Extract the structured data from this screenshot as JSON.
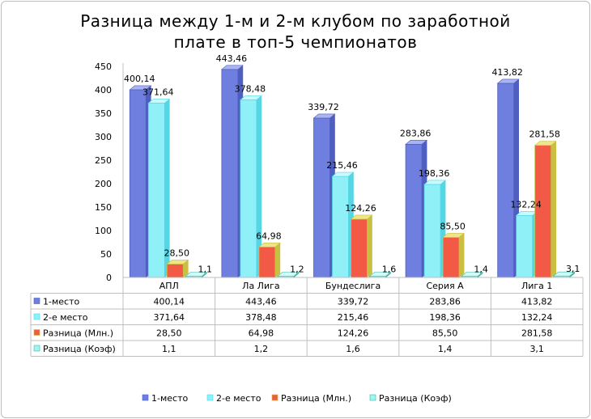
{
  "chart_data": {
    "type": "bar",
    "title_line1": "Разница между 1-м и 2-м клубом по заработной",
    "title_line2": "плате в топ-5 чемпионатов",
    "categories": [
      "АПЛ",
      "Ла Лига",
      "Бундеслига",
      "Серия А",
      "Лига 1"
    ],
    "series": [
      {
        "name": "1-место",
        "values": [
          400.14,
          443.46,
          339.72,
          283.86,
          413.82
        ],
        "labels": [
          "400,14",
          "443,46",
          "339,72",
          "283,86",
          "413,82"
        ],
        "color": "#6f7fe0",
        "color_light": "#aab4f0",
        "color_dark": "#4f5fc0"
      },
      {
        "name": "2-е место",
        "values": [
          371.64,
          378.48,
          215.46,
          198.36,
          132.24
        ],
        "labels": [
          "371,64",
          "378,48",
          "215,46",
          "198,36",
          "132,24"
        ],
        "color": "#8ff0f8",
        "color_light": "#c8fbff",
        "color_dark": "#55d6e4"
      },
      {
        "name": "Разница (Млн.)",
        "values": [
          28.5,
          64.98,
          124.26,
          85.5,
          281.58
        ],
        "labels": [
          "28,50",
          "64,98",
          "124,26",
          "85,50",
          "281,58"
        ],
        "color": "#f25a46",
        "color_light": "#f0e48a",
        "color_dark": "#c8c040"
      },
      {
        "name": "Разница (Коэф)",
        "values": [
          1.1,
          1.2,
          1.6,
          1.4,
          3.1
        ],
        "labels": [
          "1,1",
          "1,2",
          "1,6",
          "1,4",
          "3,1"
        ],
        "color": "#9ff5ef",
        "color_light": "#d0fbf7",
        "color_dark": "#3fb8a8"
      }
    ],
    "ylim": [
      0,
      450
    ],
    "yticks": [
      0,
      50,
      100,
      150,
      200,
      250,
      300,
      350,
      400,
      450
    ],
    "table_rows": [
      {
        "label": "1-место",
        "cells": [
          "400,14",
          "443,46",
          "339,72",
          "283,86",
          "413,82"
        ]
      },
      {
        "label": "2-е место",
        "cells": [
          "371,64",
          "378,48",
          "215,46",
          "198,36",
          "132,24"
        ]
      },
      {
        "label": "Разница (Млн.)",
        "cells": [
          "28,50",
          "64,98",
          "124,26",
          "85,50",
          "281,58"
        ]
      },
      {
        "label": "Разница (Коэф)",
        "cells": [
          "1,1",
          "1,2",
          "1,6",
          "1,4",
          "3,1"
        ]
      }
    ],
    "legend_position": "bottom",
    "grid": false
  }
}
